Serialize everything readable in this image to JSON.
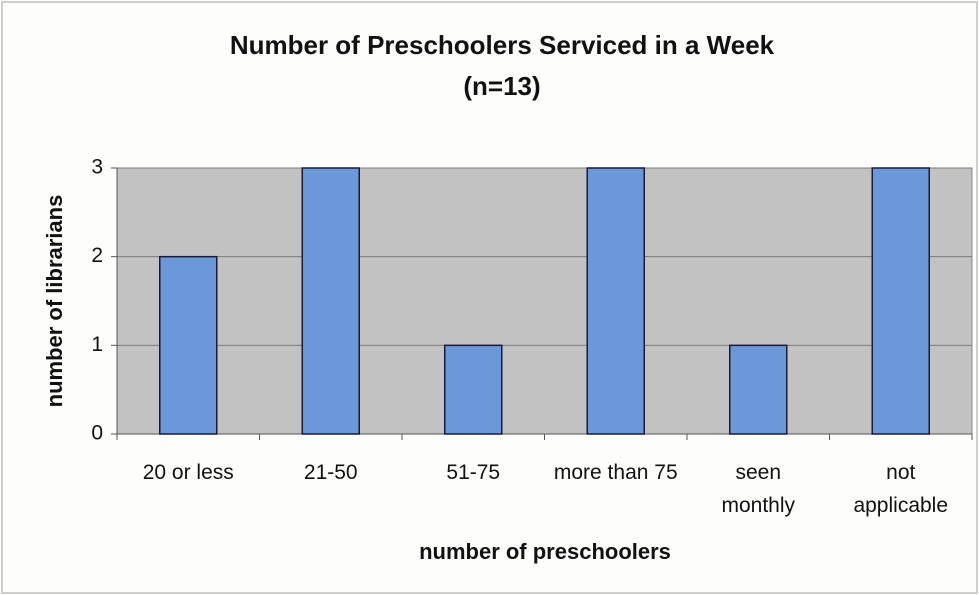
{
  "chart_data": {
    "type": "bar",
    "title": "Number of Preschoolers Serviced in a Week",
    "subtitle": "(n=13)",
    "x_label": "number of preschoolers",
    "y_label": "number of librarians",
    "categories": [
      "20 or less",
      "21-50",
      "51-75",
      "more than 75",
      "seen monthly",
      "not applicable"
    ],
    "values": [
      2,
      3,
      1,
      3,
      1,
      3
    ],
    "color": "#6b98d8",
    "ylim": [
      0,
      3
    ],
    "yticks": [
      0,
      1,
      2,
      3
    ],
    "grid": true
  }
}
